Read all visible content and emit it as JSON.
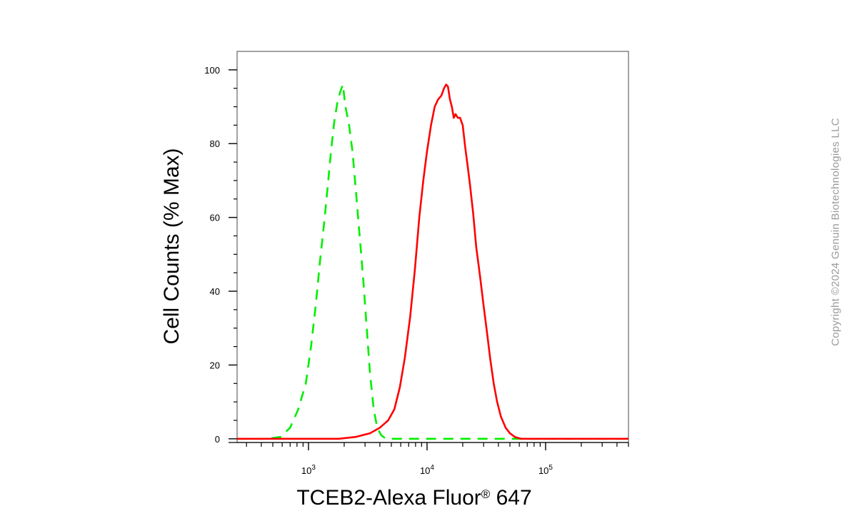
{
  "chart_data": {
    "type": "line",
    "xlabel": "TCEB2-Alexa Fluor",
    "xlabel_superscript": "®",
    "xlabel_suffix": " 647",
    "ylabel": "Cell Counts (% Max)",
    "x_scale": "log",
    "xlim": [
      250,
      500000
    ],
    "ylim": [
      -1,
      105
    ],
    "y_ticks": [
      0,
      20,
      40,
      60,
      80,
      100
    ],
    "x_tick_labels": [
      {
        "value": 1000,
        "base": "10",
        "exp": "3"
      },
      {
        "value": 10000,
        "base": "10",
        "exp": "4"
      },
      {
        "value": 100000,
        "base": "10",
        "exp": "5"
      }
    ],
    "grid": false,
    "series": [
      {
        "color": "#00ee00",
        "style": "dashed",
        "points": [
          [
            250,
            0
          ],
          [
            450,
            0
          ],
          [
            580,
            0.5
          ],
          [
            700,
            3
          ],
          [
            820,
            8
          ],
          [
            950,
            15
          ],
          [
            1050,
            25
          ],
          [
            1150,
            36
          ],
          [
            1250,
            48
          ],
          [
            1350,
            58
          ],
          [
            1450,
            68
          ],
          [
            1550,
            78
          ],
          [
            1650,
            86
          ],
          [
            1750,
            91
          ],
          [
            1850,
            94
          ],
          [
            1950,
            96
          ],
          [
            2050,
            90
          ],
          [
            2200,
            85
          ],
          [
            2350,
            78
          ],
          [
            2500,
            68
          ],
          [
            2700,
            55
          ],
          [
            2900,
            43
          ],
          [
            3100,
            30
          ],
          [
            3300,
            18
          ],
          [
            3550,
            8
          ],
          [
            3800,
            3
          ],
          [
            4100,
            1
          ],
          [
            4500,
            0
          ],
          [
            500000,
            0
          ]
        ]
      },
      {
        "color": "#ff0000",
        "style": "solid",
        "points": [
          [
            250,
            0
          ],
          [
            1800,
            0
          ],
          [
            2500,
            0.5
          ],
          [
            3300,
            1.5
          ],
          [
            4000,
            3
          ],
          [
            4700,
            5
          ],
          [
            5300,
            8
          ],
          [
            5900,
            14
          ],
          [
            6500,
            22
          ],
          [
            7200,
            33
          ],
          [
            7900,
            46
          ],
          [
            8600,
            60
          ],
          [
            9300,
            70
          ],
          [
            10000,
            78
          ],
          [
            10800,
            85
          ],
          [
            11600,
            90
          ],
          [
            12400,
            92
          ],
          [
            13200,
            93
          ],
          [
            13900,
            95
          ],
          [
            14500,
            96
          ],
          [
            15000,
            95.5
          ],
          [
            15600,
            92
          ],
          [
            16200,
            90
          ],
          [
            16800,
            87
          ],
          [
            17400,
            88
          ],
          [
            18200,
            87
          ],
          [
            19000,
            87
          ],
          [
            20000,
            85
          ],
          [
            21000,
            79
          ],
          [
            22000,
            74
          ],
          [
            23000,
            69
          ],
          [
            24500,
            61
          ],
          [
            26000,
            52
          ],
          [
            28000,
            44
          ],
          [
            30000,
            36
          ],
          [
            32000,
            29
          ],
          [
            34000,
            22
          ],
          [
            36500,
            15
          ],
          [
            39000,
            10
          ],
          [
            42000,
            6
          ],
          [
            46000,
            3
          ],
          [
            50000,
            1.5
          ],
          [
            55000,
            0.5
          ],
          [
            62000,
            0
          ],
          [
            500000,
            0
          ]
        ]
      }
    ]
  },
  "copyright": "Copyright ©2024 Genuin Biotechnologies LLC"
}
